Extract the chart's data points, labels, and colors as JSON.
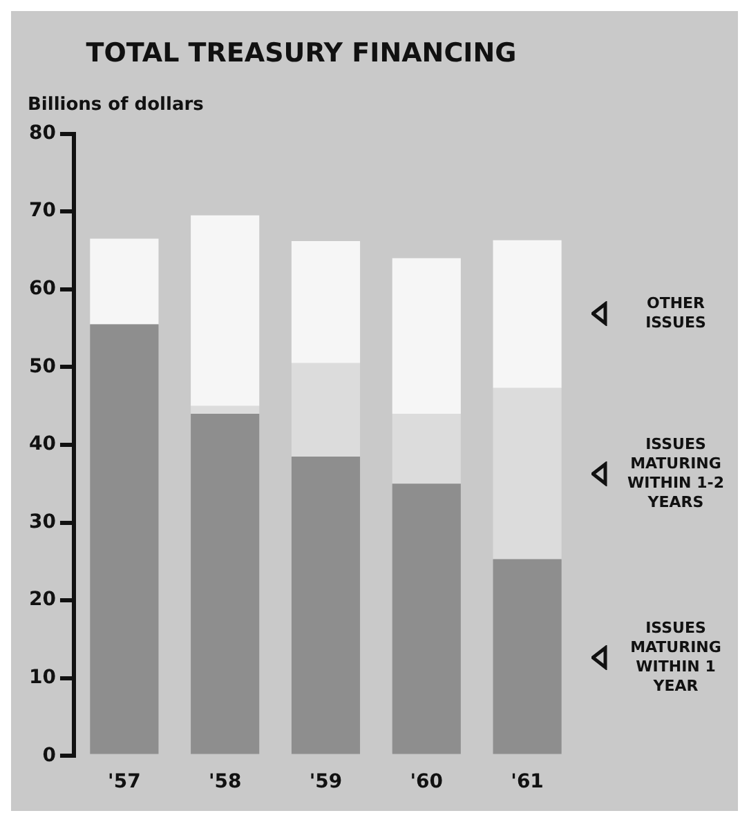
{
  "chart_data": {
    "type": "bar",
    "title": "TOTAL TREASURY FINANCING",
    "ylabel": "Billions of dollars",
    "categories": [
      "'57",
      "'58",
      "'59",
      "'60",
      "'61"
    ],
    "stacked": true,
    "grid": false,
    "legend": "right",
    "ylim": [
      0,
      80
    ],
    "yticks": [
      0,
      10,
      20,
      30,
      40,
      50,
      60,
      70,
      80
    ],
    "series": [
      {
        "name": "ISSUES MATURING WITHIN 1 YEAR",
        "color": "#8e8e8e",
        "values": [
          55.5,
          44,
          38.5,
          35,
          25.3
        ]
      },
      {
        "name": "ISSUES MATURING WITHIN 1-2 YEARS",
        "color": "#dcdcdc",
        "values": [
          0,
          1,
          12,
          9,
          22
        ]
      },
      {
        "name": "OTHER ISSUES",
        "color": "#f6f6f6",
        "values": [
          11,
          24.5,
          15.7,
          20,
          19
        ]
      }
    ]
  }
}
